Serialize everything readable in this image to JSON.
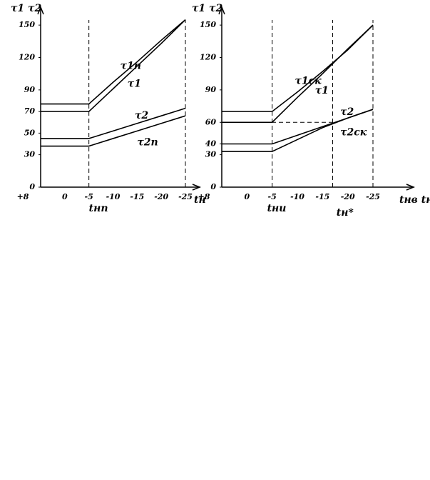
{
  "chart_data": [
    {
      "type": "line",
      "y_label": "τ1 τ2",
      "x_label": "tн",
      "categories": [
        "+8",
        "0",
        "-5",
        "-10",
        "-15",
        "-20",
        "-25"
      ],
      "ylim": [
        0,
        160
      ],
      "yticks": [
        0,
        30,
        50,
        70,
        90,
        120,
        150
      ],
      "series": [
        {
          "name": "τ1п",
          "color": "#000000",
          "values": [
            77,
            77,
            77,
            97,
            116,
            136,
            155
          ]
        },
        {
          "name": "τ1",
          "color": "#000000",
          "values": [
            70,
            70,
            70,
            91,
            112,
            133,
            155
          ]
        },
        {
          "name": "τ2",
          "color": "#000000",
          "values": [
            45,
            45,
            45,
            52,
            59,
            66,
            73
          ]
        },
        {
          "name": "τ2п",
          "color": "#000000",
          "values": [
            38,
            38,
            38,
            45,
            52,
            59,
            66
          ]
        }
      ],
      "annotations": [
        "tнп"
      ]
    },
    {
      "type": "line",
      "y_label": "τ1 τ2",
      "x_label": "tнв tн",
      "categories": [
        "+8",
        "0",
        "-5",
        "-10",
        "-15",
        "-20",
        "-25"
      ],
      "ylim": [
        0,
        160
      ],
      "yticks": [
        0,
        30,
        40,
        60,
        90,
        120,
        150
      ],
      "series": [
        {
          "name": "τ1ск",
          "color": "#000000",
          "values": [
            70,
            70,
            70,
            88,
            107,
            127,
            150
          ]
        },
        {
          "name": "τ1",
          "color": "#000000",
          "values": [
            60,
            60,
            60,
            83,
            105,
            128,
            150
          ]
        },
        {
          "name": "τ2",
          "color": "#000000",
          "values": [
            40,
            40,
            40,
            48,
            56,
            64,
            72
          ]
        },
        {
          "name": "τ2ск",
          "color": "#000000",
          "values": [
            33,
            33,
            33,
            44,
            55,
            64,
            72
          ]
        }
      ],
      "annotations": [
        "tни",
        "tн*"
      ]
    }
  ]
}
